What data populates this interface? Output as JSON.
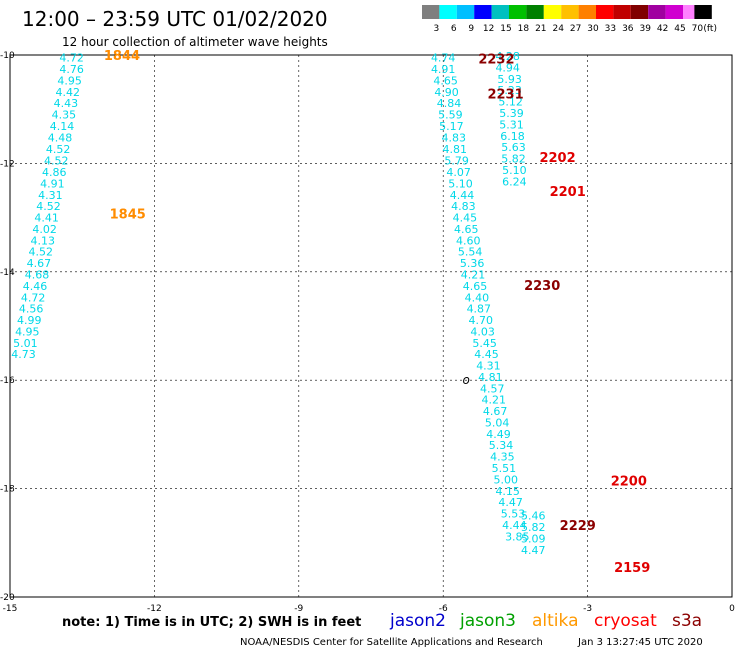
{
  "chart_data": {
    "type": "scatter",
    "title": "12:00 – 23:59 UTC 01/02/2020",
    "subtitle": "12 hour collection of altimeter wave heights",
    "xlim": [
      -15,
      0
    ],
    "ylim": [
      -20,
      -10
    ],
    "x_ticks": [
      "-15",
      "-12",
      "-9",
      "-6",
      "-3",
      "0"
    ],
    "y_ticks": [
      "-10",
      "-12",
      "-14",
      "-16",
      "-18",
      "-20"
    ],
    "grid": "dashed",
    "legend": {
      "values": [
        "3",
        "6",
        "9",
        "12",
        "15",
        "18",
        "21",
        "24",
        "27",
        "30",
        "33",
        "36",
        "39",
        "42",
        "45",
        "70",
        "(ft)"
      ],
      "colors": [
        "#7f7f7f",
        "#00ffff",
        "#00bfff",
        "#0000ff",
        "#00c0c0",
        "#00c000",
        "#008000",
        "#ffff00",
        "#ffc000",
        "#ff8000",
        "#ff0000",
        "#c00000",
        "#800000",
        "#a000a0",
        "#d000d0",
        "#ff80ff",
        "#000000"
      ]
    },
    "series": [
      {
        "points": [
          {
            "x": -13.72,
            "y": -10.05,
            "v": "4.72"
          },
          {
            "x": -13.72,
            "y": -10.26,
            "v": "4.76"
          },
          {
            "x": -13.76,
            "y": -10.47,
            "v": "4.95"
          },
          {
            "x": -13.8,
            "y": -10.68,
            "v": "4.42"
          },
          {
            "x": -13.84,
            "y": -10.89,
            "v": "4.43"
          },
          {
            "x": -13.88,
            "y": -11.1,
            "v": "4.35"
          },
          {
            "x": -13.92,
            "y": -11.31,
            "v": "4.14"
          },
          {
            "x": -13.96,
            "y": -11.52,
            "v": "4.48"
          },
          {
            "x": -14.0,
            "y": -11.73,
            "v": "4.52"
          },
          {
            "x": -14.04,
            "y": -11.95,
            "v": "4.52"
          },
          {
            "x": -14.08,
            "y": -12.16,
            "v": "4.86"
          },
          {
            "x": -14.12,
            "y": -12.37,
            "v": "4.91"
          },
          {
            "x": -14.16,
            "y": -12.58,
            "v": "4.31"
          },
          {
            "x": -14.2,
            "y": -12.79,
            "v": "4.52"
          },
          {
            "x": -14.24,
            "y": -13.0,
            "v": "4.41"
          },
          {
            "x": -14.28,
            "y": -13.21,
            "v": "4.02"
          },
          {
            "x": -14.32,
            "y": -13.42,
            "v": "4.13"
          },
          {
            "x": -14.36,
            "y": -13.63,
            "v": "4.52"
          },
          {
            "x": -14.4,
            "y": -13.84,
            "v": "4.67"
          },
          {
            "x": -14.44,
            "y": -14.05,
            "v": "4.68"
          },
          {
            "x": -14.48,
            "y": -14.26,
            "v": "4.46"
          },
          {
            "x": -14.52,
            "y": -14.47,
            "v": "4.72"
          },
          {
            "x": -14.56,
            "y": -14.68,
            "v": "4.56"
          },
          {
            "x": -14.6,
            "y": -14.89,
            "v": "4.99"
          },
          {
            "x": -14.64,
            "y": -15.1,
            "v": "4.95"
          },
          {
            "x": -14.68,
            "y": -15.31,
            "v": "5.01"
          },
          {
            "x": -14.72,
            "y": -15.52,
            "v": "4.73"
          }
        ]
      },
      {
        "points": [
          {
            "x": -6.0,
            "y": -10.05,
            "v": "4.74"
          },
          {
            "x": -6.0,
            "y": -10.26,
            "v": "4.91"
          },
          {
            "x": -5.95,
            "y": -10.47,
            "v": "4.65"
          },
          {
            "x": -5.93,
            "y": -10.68,
            "v": "4.90"
          },
          {
            "x": -5.88,
            "y": -10.89,
            "v": "4.84"
          },
          {
            "x": -5.85,
            "y": -11.1,
            "v": "5.59"
          },
          {
            "x": -5.83,
            "y": -11.31,
            "v": "5.17"
          },
          {
            "x": -5.78,
            "y": -11.52,
            "v": "4.83"
          },
          {
            "x": -5.76,
            "y": -11.73,
            "v": "4.81"
          },
          {
            "x": -5.72,
            "y": -11.95,
            "v": "5.79"
          },
          {
            "x": -5.68,
            "y": -12.16,
            "v": "4.07"
          },
          {
            "x": -5.64,
            "y": -12.37,
            "v": "5.10"
          },
          {
            "x": -5.61,
            "y": -12.58,
            "v": "4.44"
          },
          {
            "x": -5.58,
            "y": -12.79,
            "v": "4.83"
          },
          {
            "x": -5.55,
            "y": -13.0,
            "v": "4.45"
          },
          {
            "x": -5.52,
            "y": -13.21,
            "v": "4.65"
          },
          {
            "x": -5.48,
            "y": -13.42,
            "v": "4.60"
          },
          {
            "x": -5.44,
            "y": -13.63,
            "v": "5.54"
          },
          {
            "x": -5.4,
            "y": -13.84,
            "v": "5.36"
          },
          {
            "x": -5.38,
            "y": -14.05,
            "v": "4.21"
          },
          {
            "x": -5.34,
            "y": -14.26,
            "v": "4.65"
          },
          {
            "x": -5.3,
            "y": -14.47,
            "v": "4.40"
          },
          {
            "x": -5.26,
            "y": -14.68,
            "v": "4.87"
          },
          {
            "x": -5.22,
            "y": -14.89,
            "v": "4.70"
          },
          {
            "x": -5.18,
            "y": -15.1,
            "v": "4.03"
          },
          {
            "x": -5.14,
            "y": -15.31,
            "v": "5.45"
          },
          {
            "x": -5.1,
            "y": -15.52,
            "v": "4.45"
          },
          {
            "x": -5.06,
            "y": -15.73,
            "v": "4.31"
          },
          {
            "x": -5.02,
            "y": -15.94,
            "v": "4.81"
          },
          {
            "x": -4.98,
            "y": -16.15,
            "v": "4.57"
          },
          {
            "x": -4.95,
            "y": -16.36,
            "v": "4.21"
          },
          {
            "x": -4.92,
            "y": -16.57,
            "v": "4.67"
          },
          {
            "x": -4.88,
            "y": -16.78,
            "v": "5.04"
          },
          {
            "x": -4.85,
            "y": -16.99,
            "v": "4.49"
          },
          {
            "x": -4.8,
            "y": -17.2,
            "v": "5.34"
          },
          {
            "x": -4.77,
            "y": -17.41,
            "v": "4.35"
          },
          {
            "x": -4.74,
            "y": -17.62,
            "v": "5.51"
          },
          {
            "x": -4.7,
            "y": -17.83,
            "v": "5.00"
          },
          {
            "x": -4.66,
            "y": -18.04,
            "v": "4.15"
          },
          {
            "x": -4.6,
            "y": -18.25,
            "v": "4.47"
          },
          {
            "x": -4.55,
            "y": -18.46,
            "v": "5.53"
          },
          {
            "x": -4.52,
            "y": -18.67,
            "v": "4.44"
          },
          {
            "x": -4.46,
            "y": -18.88,
            "v": "3.85"
          }
        ]
      },
      {
        "points": [
          {
            "x": -4.66,
            "y": -10.02,
            "v": "4.28"
          },
          {
            "x": -4.66,
            "y": -10.23,
            "v": "4.94"
          },
          {
            "x": -4.62,
            "y": -10.44,
            "v": "5.93"
          },
          {
            "x": -4.62,
            "y": -10.65,
            "v": "5.23"
          },
          {
            "x": -4.6,
            "y": -10.86,
            "v": "5.12"
          },
          {
            "x": -4.58,
            "y": -11.07,
            "v": "5.39"
          },
          {
            "x": -4.58,
            "y": -11.28,
            "v": "5.31"
          },
          {
            "x": -4.56,
            "y": -11.49,
            "v": "6.18"
          },
          {
            "x": -4.54,
            "y": -11.7,
            "v": "5.63"
          },
          {
            "x": -4.54,
            "y": -11.91,
            "v": "5.82"
          },
          {
            "x": -4.52,
            "y": -12.12,
            "v": "5.10"
          },
          {
            "x": -4.52,
            "y": -12.33,
            "v": "6.24"
          },
          {
            "x": -4.13,
            "y": -18.5,
            "v": "5.46"
          },
          {
            "x": -4.13,
            "y": -18.71,
            "v": "5.82"
          },
          {
            "x": -4.13,
            "y": -18.92,
            "v": "5.09"
          },
          {
            "x": -4.13,
            "y": -19.13,
            "v": "4.47"
          }
        ]
      }
    ],
    "time_labels": [
      {
        "x": -13.05,
        "y": -10.0,
        "text": "1844",
        "color": "#ff8c00"
      },
      {
        "x": -12.93,
        "y": -12.92,
        "text": "1845",
        "color": "#ff8c00"
      },
      {
        "x": -5.27,
        "y": -10.06,
        "text": "2232",
        "color": "#8b0000"
      },
      {
        "x": -5.08,
        "y": -10.71,
        "text": "2231",
        "color": "#8b0000"
      },
      {
        "x": -4.0,
        "y": -11.88,
        "text": "2202",
        "color": "#e00000"
      },
      {
        "x": -3.79,
        "y": -12.51,
        "text": "2201",
        "color": "#e00000"
      },
      {
        "x": -4.32,
        "y": -14.24,
        "text": "2230",
        "color": "#8b0000"
      },
      {
        "x": -3.58,
        "y": -18.67,
        "text": "2229",
        "color": "#8b0000"
      },
      {
        "x": -2.52,
        "y": -17.85,
        "text": "2200",
        "color": "#e00000"
      },
      {
        "x": -2.45,
        "y": -19.45,
        "text": "2159",
        "color": "#e00000"
      }
    ],
    "landmark": {
      "x": -5.6,
      "y": -16.0,
      "text": "o"
    }
  },
  "footer": {
    "note": "note:  1) Time is in UTC;  2) SWH is in feet",
    "satellites": [
      {
        "name": "jason2",
        "color": "#0000cc"
      },
      {
        "name": "jason3",
        "color": "#00a000"
      },
      {
        "name": "altika",
        "color": "#ff9900"
      },
      {
        "name": "cryosat",
        "color": "#ff0000"
      },
      {
        "name": "s3a",
        "color": "#8b0000"
      }
    ],
    "credit": "NOAA/NESDIS Center for Satellite Applications and Research",
    "timestamp": "Jan  3 13:27:45 UTC 2020"
  }
}
